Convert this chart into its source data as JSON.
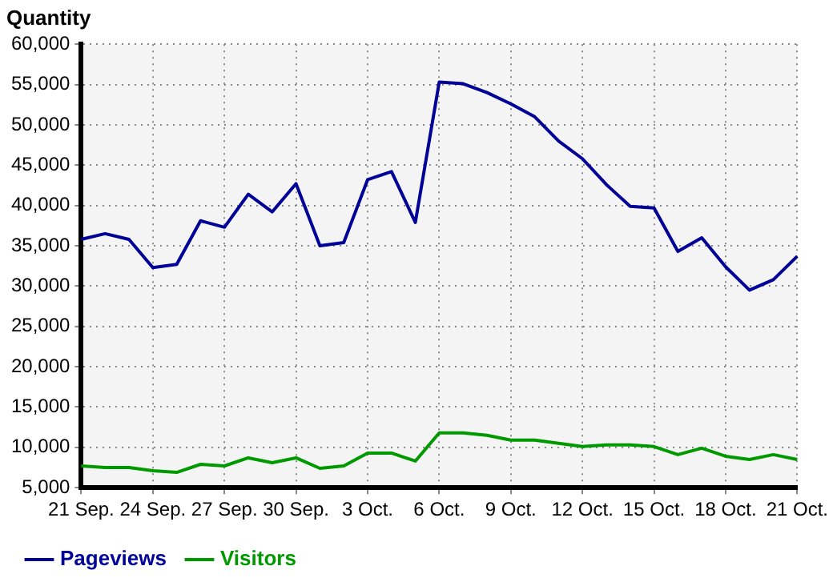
{
  "chart_data": {
    "type": "line",
    "ylabel": "Quantity",
    "categories": [
      "21 Sep.",
      null,
      null,
      "24 Sep.",
      null,
      null,
      "27 Sep.",
      null,
      null,
      "30 Sep.",
      null,
      null,
      "3 Oct.",
      null,
      null,
      "6 Oct.",
      null,
      null,
      "9 Oct.",
      null,
      null,
      "12 Oct.",
      null,
      null,
      "15 Oct.",
      null,
      null,
      "18 Oct.",
      null,
      null,
      "21 Oct."
    ],
    "series": [
      {
        "name": "Pageviews",
        "color": "#000099",
        "values": [
          35800,
          36500,
          35800,
          32300,
          32700,
          38100,
          37300,
          41400,
          39200,
          42700,
          35000,
          35400,
          43200,
          44200,
          37900,
          55300,
          55100,
          54000,
          52600,
          51000,
          48000,
          45800,
          42600,
          39900,
          39700,
          34300,
          36000,
          32400,
          29500,
          30800,
          33700
        ]
      },
      {
        "name": "Visitors",
        "color": "#009900",
        "values": [
          7700,
          7500,
          7500,
          7100,
          6900,
          7900,
          7700,
          8700,
          8100,
          8700,
          7400,
          7700,
          9300,
          9300,
          8300,
          11800,
          11800,
          11500,
          10900,
          10900,
          10500,
          10100,
          10300,
          10300,
          10100,
          9100,
          9900,
          8900,
          8500,
          9100,
          8500
        ]
      }
    ],
    "ylim": [
      5000,
      60000
    ],
    "yticks": [
      {
        "value": 5000,
        "label": "5,000"
      },
      {
        "value": 10000,
        "label": "10,000"
      },
      {
        "value": 15000,
        "label": "15,000"
      },
      {
        "value": 20000,
        "label": "20,000"
      },
      {
        "value": 25000,
        "label": "25,000"
      },
      {
        "value": 30000,
        "label": "30,000"
      },
      {
        "value": 35000,
        "label": "35,000"
      },
      {
        "value": 40000,
        "label": "40,000"
      },
      {
        "value": 45000,
        "label": "45,000"
      },
      {
        "value": 50000,
        "label": "50,000"
      },
      {
        "value": 55000,
        "label": "55,000"
      },
      {
        "value": 60000,
        "label": "60,000"
      }
    ],
    "grid": true,
    "legend": "bottom left",
    "marker": "none",
    "line_style": "solid"
  }
}
